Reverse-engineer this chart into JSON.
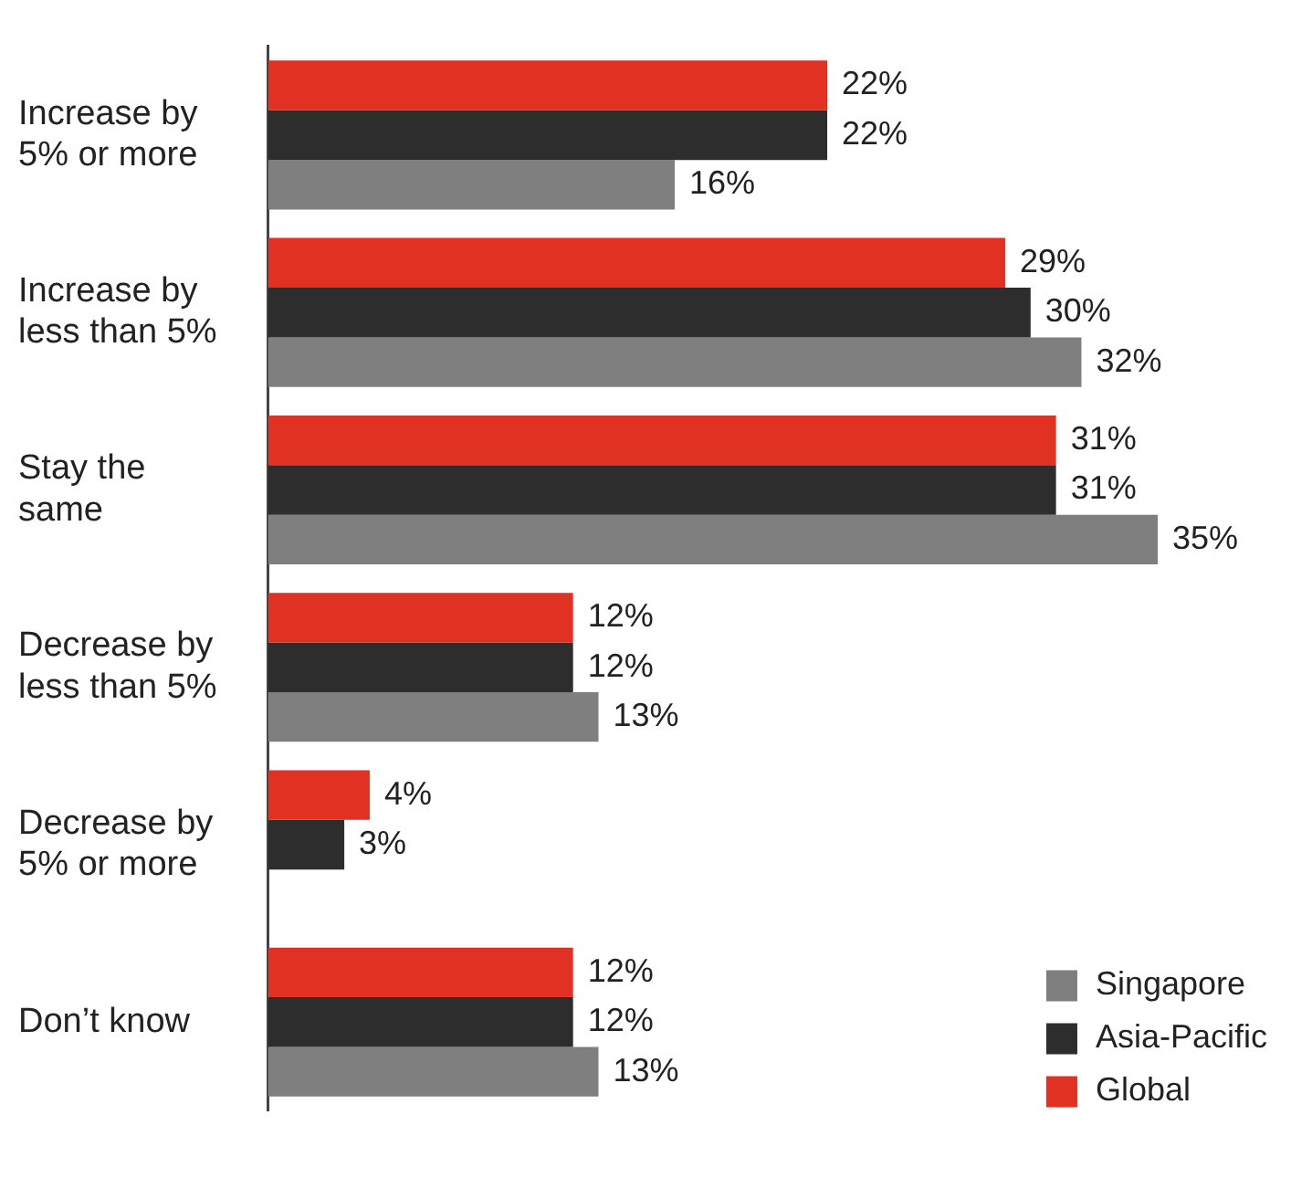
{
  "chart_data": {
    "type": "bar",
    "orientation": "horizontal",
    "categories": [
      "Increase by 5% or more",
      "Increase by less than 5%",
      "Stay the same",
      "Decrease by less than 5%",
      "Decrease by 5% or more",
      "Don’t know"
    ],
    "series": [
      {
        "name": "Global",
        "color": "#e03122",
        "values": [
          22,
          29,
          31,
          12,
          4,
          12
        ],
        "value_labels": [
          "22%",
          "29%",
          "31%",
          "12%",
          "4%",
          "12%"
        ]
      },
      {
        "name": "Asia-Pacific",
        "color": "#2d2d2d",
        "values": [
          22,
          30,
          31,
          12,
          3,
          12
        ],
        "value_labels": [
          "22%",
          "30%",
          "31%",
          "12%",
          "3%",
          "12%"
        ]
      },
      {
        "name": "Singapore",
        "color": "#7f7f7f",
        "values": [
          16,
          32,
          35,
          13,
          null,
          13
        ],
        "value_labels": [
          "16%",
          "32%",
          "35%",
          "13%",
          null,
          "13%"
        ]
      }
    ],
    "legend": "bottom right",
    "grid": false
  }
}
